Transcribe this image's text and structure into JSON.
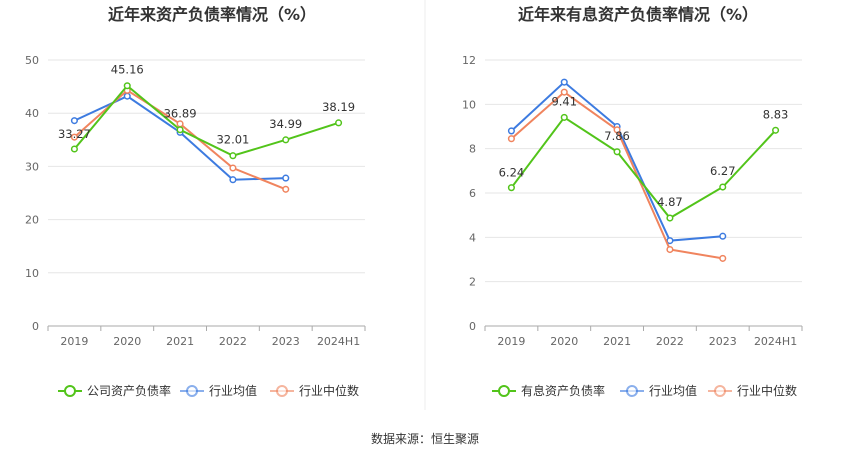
{
  "source_label": "数据来源：恒生聚源",
  "chart_data": [
    {
      "type": "line",
      "title": "近年来资产负债率情况（%）",
      "x": [
        "2019",
        "2020",
        "2021",
        "2022",
        "2023",
        "2024H1"
      ],
      "ylim": [
        0,
        50
      ],
      "yticks": [
        0,
        10,
        20,
        30,
        40,
        50
      ],
      "grid": true,
      "legend_position": "bottom",
      "series": [
        {
          "name": "公司资产负债率",
          "color": "#52c41a",
          "values": [
            33.27,
            45.16,
            36.89,
            32.01,
            34.99,
            38.19
          ],
          "labels": [
            "33.27",
            "45.16",
            "36.89",
            "32.01",
            "34.99",
            "38.19"
          ]
        },
        {
          "name": "行业均值",
          "color": "#3d7be0",
          "values": [
            38.6,
            43.2,
            36.4,
            27.5,
            27.8,
            null
          ]
        },
        {
          "name": "行业中位数",
          "color": "#f0845e",
          "values": [
            35.5,
            44.3,
            38.0,
            29.7,
            25.7,
            null
          ]
        }
      ]
    },
    {
      "type": "line",
      "title": "近年来有息资产负债率情况（%）",
      "x": [
        "2019",
        "2020",
        "2021",
        "2022",
        "2023",
        "2024H1"
      ],
      "ylim": [
        0,
        12
      ],
      "yticks": [
        0,
        2,
        4,
        6,
        8,
        10,
        12
      ],
      "grid": true,
      "legend_position": "bottom",
      "series": [
        {
          "name": "有息资产负债率",
          "color": "#52c41a",
          "values": [
            6.24,
            9.41,
            7.86,
            4.87,
            6.27,
            8.83
          ],
          "labels": [
            "6.24",
            "9.41",
            "7.86",
            "4.87",
            "6.27",
            "8.83"
          ]
        },
        {
          "name": "行业均值",
          "color": "#3d7be0",
          "values": [
            8.8,
            11.0,
            9.0,
            3.85,
            4.05,
            null
          ]
        },
        {
          "name": "行业中位数",
          "color": "#f0845e",
          "values": [
            8.45,
            10.55,
            8.85,
            3.45,
            3.05,
            null
          ]
        }
      ]
    }
  ]
}
